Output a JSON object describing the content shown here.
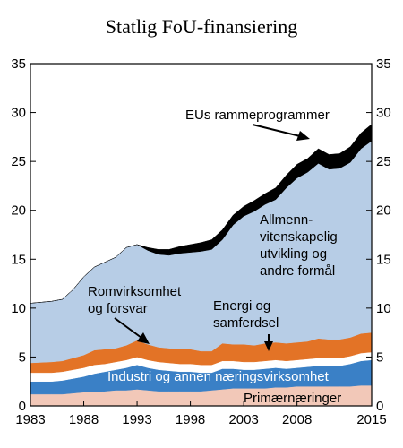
{
  "chart_data": {
    "type": "area",
    "title": "Statlig FoU-finansiering",
    "xlabel": "",
    "ylabel": "",
    "xlim": [
      1983,
      2015
    ],
    "ylim": [
      0,
      35
    ],
    "x_ticks": [
      "1983",
      "1988",
      "1993",
      "1998",
      "2003",
      "2008",
      "2015"
    ],
    "x_tick_values": [
      1983,
      1988,
      1993,
      1998,
      2003,
      2008,
      2015
    ],
    "y_ticks": [
      "0",
      "5",
      "10",
      "15",
      "20",
      "25",
      "30",
      "35"
    ],
    "y_tick_values": [
      0,
      5,
      10,
      15,
      20,
      25,
      30,
      35
    ],
    "grid": false,
    "stacked": true,
    "x": [
      1983,
      1985,
      1986,
      1987,
      1988,
      1989,
      1990,
      1991,
      1992,
      1993,
      1994,
      1995,
      1996,
      1997,
      1998,
      1999,
      2000,
      2001,
      2002,
      2003,
      2004,
      2005,
      2006,
      2007,
      2008,
      2009,
      2010,
      2011,
      2012,
      2013,
      2014,
      2015
    ],
    "series": [
      {
        "name": "Primærnæringer",
        "color": "#f2c8b8",
        "values": [
          1.2,
          1.2,
          1.2,
          1.3,
          1.4,
          1.4,
          1.5,
          1.6,
          1.6,
          1.7,
          1.6,
          1.5,
          1.5,
          1.5,
          1.5,
          1.5,
          1.6,
          1.7,
          1.8,
          1.8,
          1.8,
          1.8,
          1.9,
          1.9,
          2.0,
          2.0,
          2.0,
          2.0,
          2.0,
          2.0,
          2.1,
          2.1
        ]
      },
      {
        "name": "Industri og annen næringsvirksomhet",
        "color": "#3a80c6",
        "values": [
          1.3,
          1.3,
          1.4,
          1.5,
          1.6,
          1.9,
          2.0,
          2.1,
          2.3,
          2.5,
          2.3,
          2.2,
          2.1,
          2.0,
          2.0,
          1.9,
          1.8,
          2.1,
          2.0,
          1.9,
          1.9,
          2.0,
          2.0,
          1.9,
          1.9,
          2.0,
          2.1,
          2.1,
          2.1,
          2.3,
          2.5,
          2.6
        ]
      },
      {
        "name": "Romvirksomhet og forsvar",
        "color": "#ffffff",
        "values": [
          0.9,
          0.9,
          0.9,
          0.9,
          0.9,
          0.9,
          0.8,
          0.8,
          0.8,
          0.8,
          0.8,
          0.8,
          0.8,
          0.8,
          0.8,
          0.8,
          0.8,
          0.8,
          0.8,
          0.8,
          0.8,
          0.8,
          0.8,
          0.8,
          0.8,
          0.8,
          0.8,
          0.8,
          0.8,
          0.8,
          0.8,
          0.8
        ]
      },
      {
        "name": "Energi og samferdsel",
        "color": "#e37326",
        "values": [
          1.0,
          1.1,
          1.1,
          1.2,
          1.3,
          1.5,
          1.5,
          1.4,
          1.5,
          1.7,
          1.6,
          1.5,
          1.5,
          1.5,
          1.5,
          1.4,
          1.4,
          1.8,
          1.7,
          1.8,
          1.7,
          1.8,
          1.8,
          1.8,
          1.8,
          1.8,
          2.0,
          1.9,
          1.9,
          1.9,
          2.0,
          2.0
        ]
      },
      {
        "name": "Allmennvitenskapelig utvikling og andre formål",
        "color": "#b7cde6",
        "values": [
          6.1,
          6.2,
          6.3,
          7.0,
          8.0,
          8.5,
          8.9,
          9.3,
          10.0,
          9.8,
          9.6,
          9.5,
          9.5,
          9.8,
          9.9,
          10.2,
          10.4,
          10.6,
          12.2,
          13.1,
          13.7,
          14.2,
          14.6,
          15.9,
          16.8,
          17.3,
          17.9,
          17.4,
          17.5,
          17.9,
          18.9,
          19.6
        ]
      },
      {
        "name": "EUs rammeprogrammer",
        "color": "#000000",
        "values": [
          0.0,
          0.0,
          0.0,
          0.0,
          0.0,
          0.0,
          0.0,
          0.0,
          0.0,
          0.0,
          0.3,
          0.5,
          0.6,
          0.7,
          0.8,
          0.9,
          1.0,
          1.0,
          1.0,
          1.0,
          1.1,
          1.1,
          1.2,
          1.3,
          1.4,
          1.4,
          1.5,
          1.5,
          1.5,
          1.6,
          1.6,
          1.7
        ]
      }
    ],
    "labels": {
      "eu": "EUs rammeprogrammer",
      "allmenn_1": "Allmenn-",
      "allmenn_2": "vitenskapelig",
      "allmenn_3": "utvikling og",
      "allmenn_4": "andre formål",
      "rom_1": "Romvirksomhet",
      "rom_2": "og forsvar",
      "energi_1": "Energi og",
      "energi_2": "samferdsel",
      "industri": "Industri og annen næringsvirksomhet",
      "primaer": "Primærnæringer"
    }
  }
}
